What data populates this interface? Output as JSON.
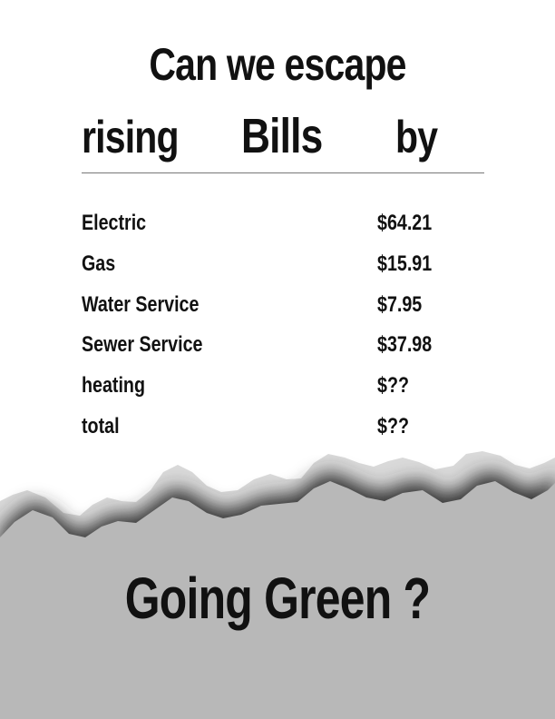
{
  "headline": {
    "line1": "Can we escape",
    "line2_words": [
      "rising",
      "Bills",
      "by"
    ]
  },
  "bills": [
    {
      "label": "Electric",
      "amount": "$64.21"
    },
    {
      "label": "Gas",
      "amount": "$15.91"
    },
    {
      "label": "Water Service",
      "amount": "$7.95"
    },
    {
      "label": "Sewer Service",
      "amount": "$37.98"
    },
    {
      "label": "heating",
      "amount": "$??"
    },
    {
      "label": "total",
      "amount": "$??"
    }
  ],
  "footer": {
    "text": "Going Green ?"
  },
  "colors": {
    "text": "#111111",
    "rule": "#777777",
    "paper_edge": "#d9d9d9",
    "bottom_fill": "#b8b8b8"
  }
}
